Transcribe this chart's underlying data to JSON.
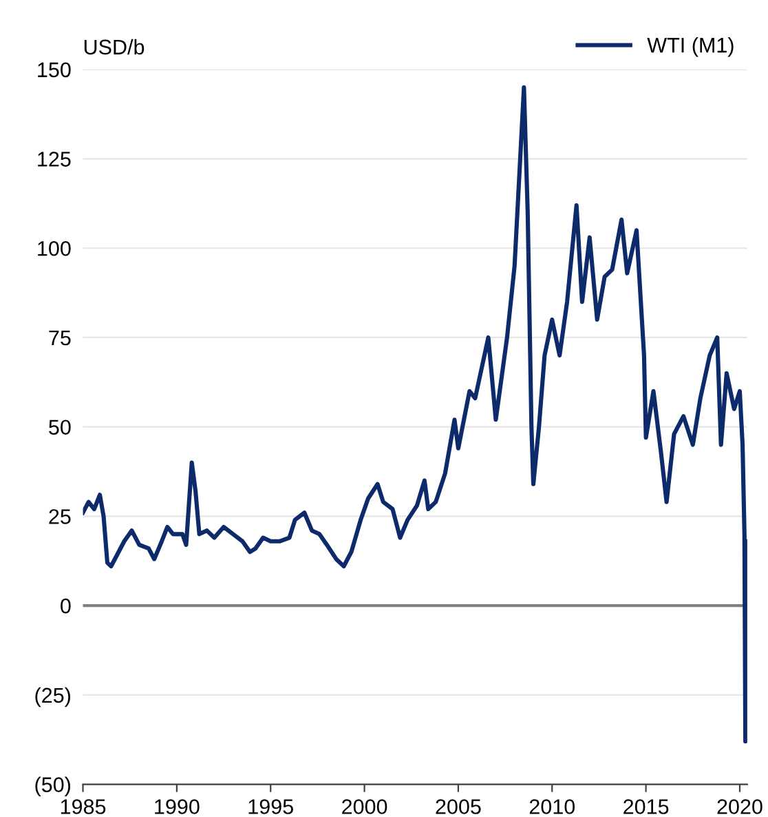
{
  "chart_data": {
    "type": "line",
    "ylabel": "USD/b",
    "series": [
      {
        "name": "WTI (M1)",
        "color": "#0d2a6b",
        "x": [
          1985.0,
          1985.3,
          1985.6,
          1985.9,
          1986.1,
          1986.3,
          1986.5,
          1986.8,
          1987.2,
          1987.6,
          1988.0,
          1988.5,
          1988.8,
          1989.2,
          1989.5,
          1989.8,
          1990.3,
          1990.5,
          1990.8,
          1991.0,
          1991.2,
          1991.6,
          1992.0,
          1992.5,
          1993.0,
          1993.5,
          1993.9,
          1994.2,
          1994.6,
          1995.0,
          1995.5,
          1996.0,
          1996.3,
          1996.8,
          1997.2,
          1997.6,
          1998.0,
          1998.5,
          1998.9,
          1999.3,
          1999.8,
          2000.2,
          2000.7,
          2001.0,
          2001.5,
          2001.9,
          2002.3,
          2002.8,
          2003.2,
          2003.4,
          2003.8,
          2004.3,
          2004.8,
          2005.0,
          2005.6,
          2005.9,
          2006.6,
          2007.0,
          2007.6,
          2008.0,
          2008.5,
          2008.7,
          2008.9,
          2009.0,
          2009.3,
          2009.6,
          2010.0,
          2010.4,
          2010.8,
          2011.3,
          2011.6,
          2012.0,
          2012.4,
          2012.8,
          2013.2,
          2013.7,
          2014.0,
          2014.5,
          2014.9,
          2015.0,
          2015.4,
          2015.8,
          2016.1,
          2016.5,
          2017.0,
          2017.5,
          2017.9,
          2018.4,
          2018.8,
          2019.0,
          2019.3,
          2019.7,
          2020.0,
          2020.15,
          2020.25,
          2020.3,
          2020.35
        ],
        "values": [
          26,
          29,
          27,
          31,
          25,
          12,
          11,
          14,
          18,
          21,
          17,
          16,
          13,
          18,
          22,
          20,
          20,
          17,
          40,
          32,
          20,
          21,
          19,
          22,
          20,
          18,
          15,
          16,
          19,
          18,
          18,
          19,
          24,
          26,
          21,
          20,
          17,
          13,
          11,
          15,
          24,
          30,
          34,
          29,
          27,
          19,
          24,
          28,
          35,
          27,
          29,
          37,
          52,
          44,
          60,
          58,
          75,
          52,
          75,
          95,
          145,
          110,
          50,
          34,
          50,
          70,
          80,
          70,
          85,
          112,
          85,
          103,
          80,
          92,
          94,
          108,
          93,
          105,
          70,
          47,
          60,
          43,
          29,
          48,
          53,
          45,
          58,
          70,
          75,
          45,
          65,
          55,
          60,
          45,
          20,
          -38,
          18
        ]
      }
    ],
    "xlim": [
      1985,
      2020.4
    ],
    "xticks": [
      1985,
      1990,
      1995,
      2000,
      2005,
      2010,
      2015,
      2020
    ],
    "ylim": [
      -50,
      150
    ],
    "yticks": [
      {
        "value": -50,
        "label": "(50)"
      },
      {
        "value": -25,
        "label": "(25)"
      },
      0,
      25,
      50,
      75,
      100,
      125,
      150
    ],
    "ref_lines": [
      {
        "axis": "y",
        "value": 0,
        "color": "#808080"
      }
    ],
    "grid": "y",
    "legend": "top right",
    "line_style": "solid",
    "marker": "none"
  }
}
